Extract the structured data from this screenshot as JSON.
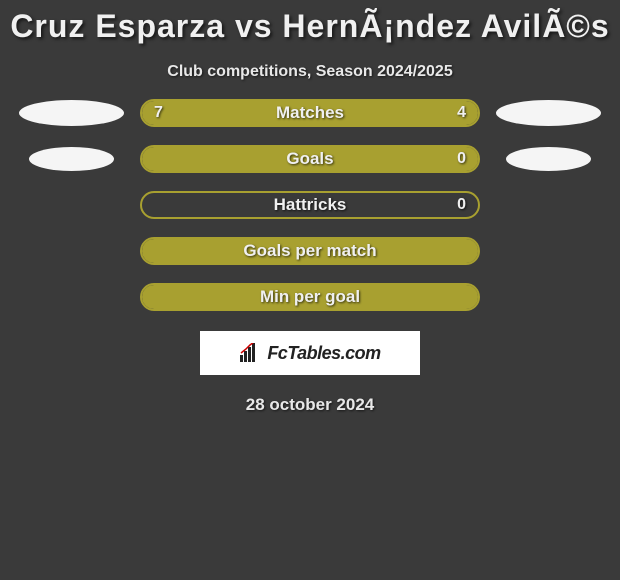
{
  "header": {
    "title": "Cruz Esparza vs HernÃ¡ndez AvilÃ©s",
    "subtitle": "Club competitions, Season 2024/2025"
  },
  "stats": [
    {
      "label": "Matches",
      "left_val": "7",
      "right_val": "4",
      "left_pct": 63,
      "right_pct": 37,
      "left_color": "#a8a030",
      "right_color": "#a8a030",
      "border_color": "#a8a030",
      "show_avatar": "full",
      "show_left_val": true,
      "show_right_val": true
    },
    {
      "label": "Goals",
      "left_val": "",
      "right_val": "0",
      "left_pct": 100,
      "right_pct": 0,
      "left_color": "#a8a030",
      "right_color": "#a8a030",
      "border_color": "#a8a030",
      "show_avatar": "small",
      "show_left_val": false,
      "show_right_val": true
    },
    {
      "label": "Hattricks",
      "left_val": "",
      "right_val": "0",
      "left_pct": 0,
      "right_pct": 0,
      "left_color": "#a8a030",
      "right_color": "#a8a030",
      "border_color": "#a8a030",
      "show_avatar": "none",
      "show_left_val": false,
      "show_right_val": true
    },
    {
      "label": "Goals per match",
      "left_val": "",
      "right_val": "",
      "left_pct": 100,
      "right_pct": 0,
      "left_color": "#a8a030",
      "right_color": "#a8a030",
      "border_color": "#a8a030",
      "show_avatar": "none",
      "show_left_val": false,
      "show_right_val": false
    },
    {
      "label": "Min per goal",
      "left_val": "",
      "right_val": "",
      "left_pct": 100,
      "right_pct": 0,
      "left_color": "#a8a030",
      "right_color": "#a8a030",
      "border_color": "#a8a030",
      "show_avatar": "none",
      "show_left_val": false,
      "show_right_val": false
    }
  ],
  "brand": {
    "text": "FcTables.com"
  },
  "footer": {
    "date": "28 october 2024"
  },
  "colors": {
    "bg": "#3a3a3a",
    "avatar": "#f5f5f5"
  }
}
